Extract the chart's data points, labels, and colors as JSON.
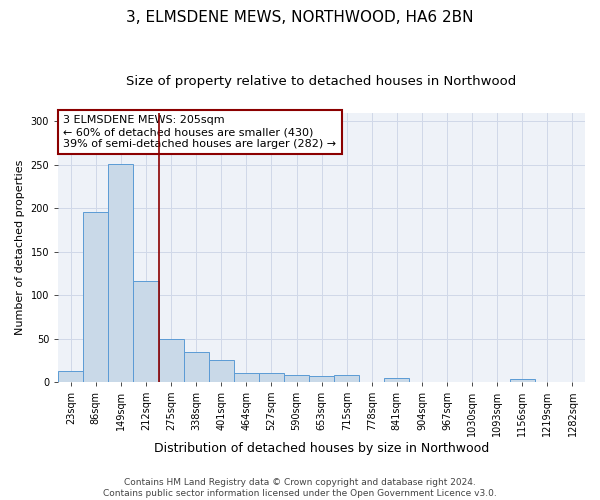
{
  "title": "3, ELMSDENE MEWS, NORTHWOOD, HA6 2BN",
  "subtitle": "Size of property relative to detached houses in Northwood",
  "xlabel": "Distribution of detached houses by size in Northwood",
  "ylabel": "Number of detached properties",
  "bar_values": [
    12,
    196,
    251,
    116,
    50,
    35,
    25,
    10,
    10,
    8,
    7,
    8,
    0,
    4,
    0,
    0,
    0,
    0,
    3,
    0,
    0
  ],
  "bar_labels": [
    "23sqm",
    "86sqm",
    "149sqm",
    "212sqm",
    "275sqm",
    "338sqm",
    "401sqm",
    "464sqm",
    "527sqm",
    "590sqm",
    "653sqm",
    "715sqm",
    "778sqm",
    "841sqm",
    "904sqm",
    "967sqm",
    "1030sqm",
    "1093sqm",
    "1156sqm",
    "1219sqm",
    "1282sqm"
  ],
  "bar_color": "#c9d9e8",
  "bar_edge_color": "#5b9bd5",
  "vline_color": "#8b0000",
  "annotation_text": "3 ELMSDENE MEWS: 205sqm\n← 60% of detached houses are smaller (430)\n39% of semi-detached houses are larger (282) →",
  "annotation_box_color": "#ffffff",
  "annotation_box_edge": "#8b0000",
  "ylim": [
    0,
    310
  ],
  "yticks": [
    0,
    50,
    100,
    150,
    200,
    250,
    300
  ],
  "grid_color": "#d0d8e8",
  "bg_color": "#eef2f8",
  "footer": "Contains HM Land Registry data © Crown copyright and database right 2024.\nContains public sector information licensed under the Open Government Licence v3.0.",
  "title_fontsize": 11,
  "subtitle_fontsize": 9.5,
  "xlabel_fontsize": 9,
  "ylabel_fontsize": 8,
  "tick_fontsize": 7,
  "annotation_fontsize": 8,
  "footer_fontsize": 6.5
}
